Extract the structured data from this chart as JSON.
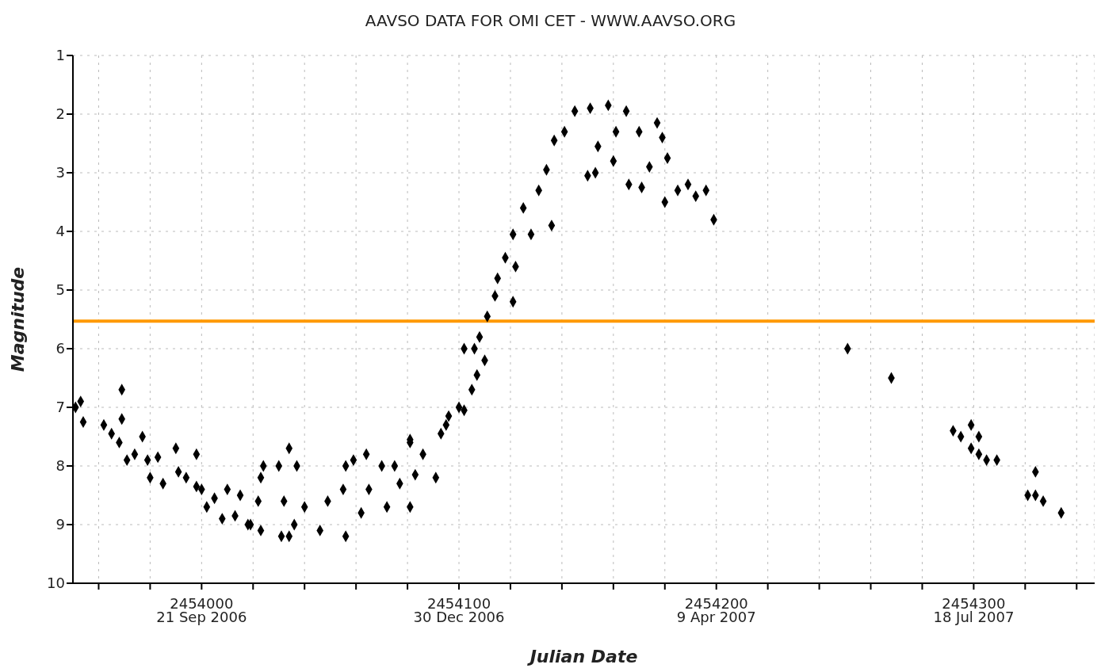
{
  "chart_data": {
    "type": "scatter",
    "title": "AAVSO DATA FOR OMI CET - WWW.AAVSO.ORG",
    "xlabel": "Julian Date",
    "ylabel": "Magnitude",
    "x": [
      2453951,
      2453953,
      2453954,
      2453962,
      2453965,
      2453968,
      2453969,
      2453969,
      2453971,
      2453974,
      2453977,
      2453979,
      2453980,
      2453983,
      2453985,
      2453990,
      2453991,
      2453994,
      2453998,
      2453998,
      2454000,
      2454002,
      2454005,
      2454008,
      2454010,
      2454013,
      2454015,
      2454018,
      2454024,
      2454030,
      2454034,
      2454037,
      2454023,
      2454022,
      2454019,
      2454023,
      2454031,
      2454034,
      2454032,
      2454036,
      2454040,
      2454046,
      2454049,
      2454056,
      2454055,
      2454056,
      2454059,
      2454064,
      2454062,
      2454065,
      2454070,
      2454072,
      2454075,
      2454077,
      2454081,
      2454081,
      2454086,
      2454091,
      2454093,
      2454096,
      2454100,
      2454083,
      2454081,
      2454095,
      2454102,
      2454106,
      2454102,
      2454105,
      2454107,
      2454110,
      2454108,
      2454111,
      2454114,
      2454115,
      2454121,
      2454118,
      2454122,
      2454121,
      2454125,
      2454128,
      2454131,
      2454136,
      2454134,
      2454137,
      2454141,
      2454145,
      2454151,
      2454150,
      2454153,
      2454158,
      2454160,
      2454154,
      2454165,
      2454166,
      2454170,
      2454177,
      2454179,
      2454181,
      2454171,
      2454180,
      2454185,
      2454189,
      2454192,
      2454196,
      2454199,
      2454174,
      2454161,
      2454251,
      2454268,
      2454292,
      2454295,
      2454299,
      2454302,
      2454299,
      2454302,
      2454305,
      2454309,
      2454324,
      2454321,
      2454324,
      2454327,
      2454334
    ],
    "series": [
      {
        "color": "#000000",
        "values": [
          7.0,
          6.9,
          7.25,
          7.3,
          7.45,
          7.6,
          6.7,
          7.2,
          7.9,
          7.8,
          7.5,
          7.9,
          8.2,
          7.85,
          8.3,
          7.7,
          8.1,
          8.2,
          7.8,
          8.35,
          8.4,
          8.7,
          8.55,
          8.9,
          8.4,
          8.85,
          8.5,
          9.0,
          8.0,
          8.0,
          7.7,
          8.0,
          8.2,
          8.6,
          9.0,
          9.1,
          9.2,
          9.2,
          8.6,
          9.0,
          8.7,
          9.1,
          8.6,
          9.2,
          8.4,
          8.0,
          7.9,
          7.8,
          8.8,
          8.4,
          8.0,
          8.7,
          8.0,
          8.3,
          8.7,
          7.6,
          7.8,
          8.2,
          7.45,
          7.15,
          7.0,
          8.15,
          7.55,
          7.3,
          6.0,
          6.0,
          7.05,
          6.7,
          6.45,
          6.2,
          5.8,
          5.45,
          5.1,
          4.8,
          5.2,
          4.45,
          4.6,
          4.05,
          3.6,
          4.05,
          3.3,
          3.9,
          2.95,
          2.45,
          2.3,
          1.95,
          1.9,
          3.05,
          3.0,
          1.85,
          2.8,
          2.55,
          1.95,
          3.2,
          2.3,
          2.15,
          2.4,
          2.75,
          3.25,
          3.5,
          3.3,
          3.2,
          3.4,
          3.3,
          3.8,
          2.9,
          2.3,
          6.0,
          6.5,
          7.4,
          7.5,
          7.3,
          7.5,
          7.7,
          7.8,
          7.9,
          7.9,
          8.1,
          8.5,
          8.5,
          8.6,
          8.8
        ]
      }
    ],
    "xlim": [
      2453950,
      2454347
    ],
    "xticks": [
      {
        "value": 2453960,
        "label": null
      },
      {
        "value": 2453980,
        "label": null
      },
      2454000,
      {
        "value": 2454020,
        "label": null
      },
      {
        "value": 2454040,
        "label": null
      },
      {
        "value": 2454060,
        "label": null
      },
      {
        "value": 2454080,
        "label": null
      },
      2454100,
      {
        "value": 2454120,
        "label": null
      },
      {
        "value": 2454140,
        "label": null
      },
      {
        "value": 2454160,
        "label": null
      },
      {
        "value": 2454180,
        "label": null
      },
      2454200,
      {
        "value": 2454220,
        "label": null
      },
      {
        "value": 2454240,
        "label": null
      },
      {
        "value": 2454260,
        "label": null
      },
      {
        "value": 2454280,
        "label": null
      },
      2454300,
      {
        "value": 2454320,
        "label": null
      },
      {
        "value": 2454340,
        "label": null
      }
    ],
    "ylim": [
      10,
      1
    ],
    "yticks": [
      1,
      2,
      3,
      4,
      5,
      6,
      7,
      8,
      9,
      10
    ],
    "annotations": [
      "21 Sep 2006",
      "30 Dec 2006",
      "9 Apr 2007",
      "18 Jul 2007"
    ],
    "grid": true,
    "marker": "diamond",
    "ref_lines": [
      {
        "axis": "y",
        "value": 5.53,
        "color": "#ff9900"
      }
    ]
  }
}
